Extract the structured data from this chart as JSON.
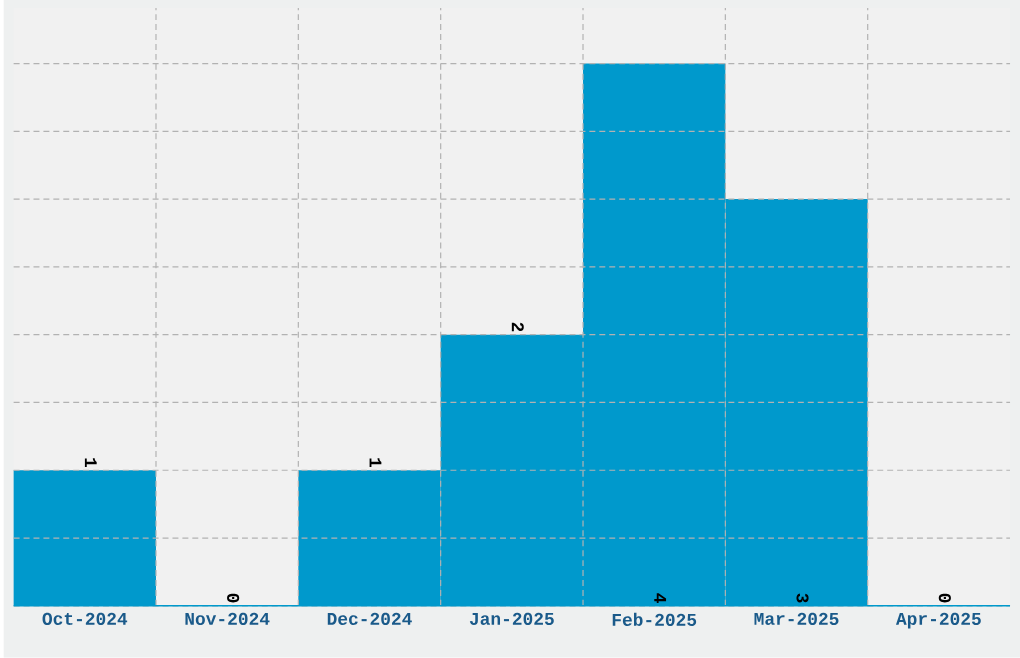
{
  "chart_data": {
    "type": "bar",
    "categories": [
      "Oct-2024",
      "Nov-2024",
      "Dec-2024",
      "Jan-2025",
      "Feb-2025",
      "Mar-2025",
      "Apr-2025"
    ],
    "values": [
      1,
      0,
      1,
      2,
      4,
      3,
      0
    ],
    "color": "#0099cc",
    "ylim": [
      0,
      4.41
    ],
    "tick_labels": "x",
    "grid": true,
    "data_labels": true
  }
}
